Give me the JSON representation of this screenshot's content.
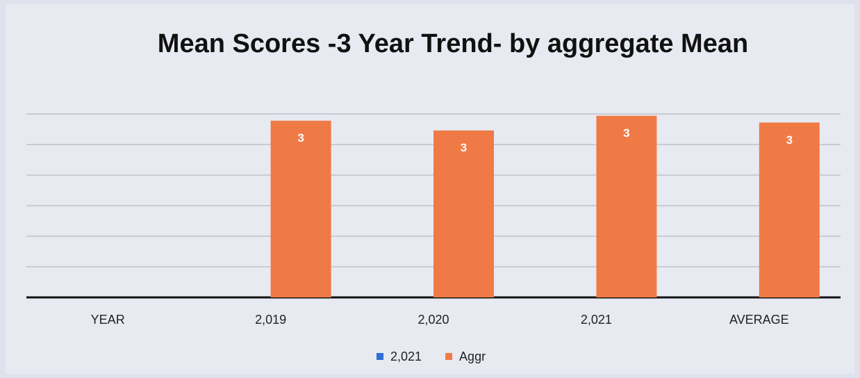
{
  "chart_data": {
    "type": "bar",
    "title": "Mean Scores -3 Year Trend- by aggregate Mean",
    "categories": [
      "YEAR",
      "2,019",
      "2,020",
      "2,021",
      "AVERAGE"
    ],
    "series": [
      {
        "name": "2,021",
        "color": "#2f6fd6",
        "values": [
          null,
          null,
          null,
          null,
          null
        ]
      },
      {
        "name": "Aggr",
        "color": "#f07a45",
        "values": [
          null,
          2.89,
          2.73,
          2.97,
          2.86
        ],
        "value_labels": [
          null,
          "3",
          "3",
          "3",
          "3"
        ]
      }
    ],
    "ylim": [
      0,
      3
    ],
    "yticks": [
      0,
      0.5,
      1,
      1.5,
      2,
      2.5,
      3
    ],
    "grid": true,
    "legend": "bottom"
  }
}
